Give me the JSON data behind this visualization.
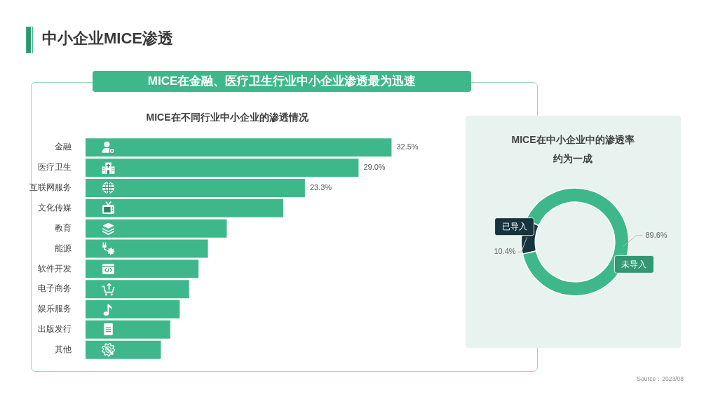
{
  "chart_data": [
    {
      "type": "bar",
      "orientation": "horizontal",
      "title": "MICE在不同行业中小企业的渗透情况",
      "subtitle": "MICE在金融、医疗卫生行业中小企业渗透最为迅速",
      "annotations": [
        "中小企业MICE渗透"
      ],
      "categories": [
        "金融",
        "医疗卫生",
        "互联网服务",
        "文化传媒",
        "教育",
        "能源",
        "软件开发",
        "电子商务",
        "娱乐服务",
        "出版发行",
        "其他"
      ],
      "values": [
        32.5,
        29.0,
        23.3,
        21,
        15,
        13,
        12,
        11,
        10,
        9,
        8
      ],
      "value_labels": [
        "32.5%",
        "29.0%",
        "23.3%",
        null,
        null,
        null,
        null,
        null,
        null,
        null,
        null
      ],
      "color": "#3eb88a",
      "tick_labels": "y"
    },
    {
      "type": "donut",
      "title": "MICE在中小企业中的渗透率约为一成",
      "categories": [
        "已导入",
        "未导入"
      ],
      "values": [
        10.4,
        89.6
      ],
      "colors": [
        "#17333d",
        "#3eb88a"
      ],
      "value_labels": [
        "10.4%",
        "89.6%"
      ],
      "annotations": [
        "Source：2023/08"
      ]
    }
  ]
}
